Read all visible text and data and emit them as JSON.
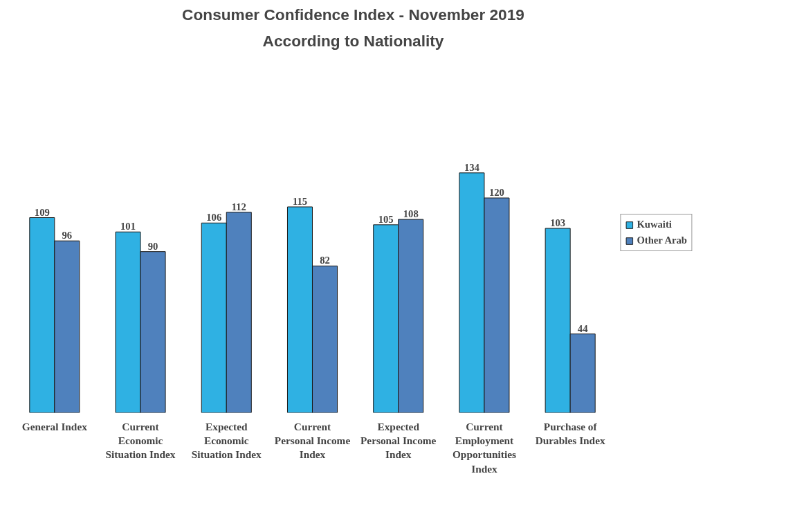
{
  "chart_data": {
    "type": "bar",
    "title": "Consumer Confidence Index - November 2019",
    "subtitle": "According to Nationality",
    "categories": [
      "General Index",
      "Current Economic Situation Index",
      "Expected Economic Situation Index",
      "Current Personal Income Index",
      "Expected Personal Income Index",
      "Current Employment Opportunities Index",
      "Purchase of Durables Index"
    ],
    "series": [
      {
        "name": "Kuwaiti",
        "color": "#2fb1e3",
        "values": [
          109,
          101,
          106,
          115,
          105,
          134,
          103
        ]
      },
      {
        "name": "Other Arab",
        "color": "#4f81bd",
        "values": [
          96,
          90,
          112,
          82,
          108,
          120,
          44
        ]
      }
    ],
    "data_labels": true,
    "legend": "right",
    "grid": false
  }
}
